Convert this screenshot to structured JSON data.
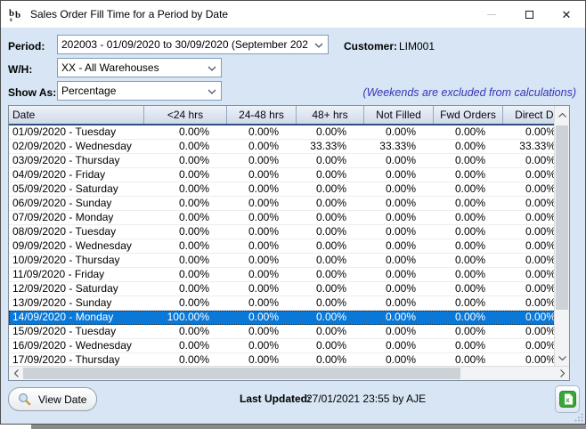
{
  "window": {
    "title": "Sales Order Fill Time for a Period by Date",
    "close_glyph": "✕"
  },
  "form": {
    "period_label": "Period:",
    "period_value": "202003 - 01/09/2020 to 30/09/2020 (September 202",
    "customer_label": "Customer:",
    "customer_value": "LIM001",
    "wh_label": "W/H:",
    "wh_value": "XX - All Warehouses",
    "show_as_label": "Show As:",
    "show_as_value": "Percentage",
    "note": "(Weekends are excluded from calculations)"
  },
  "table": {
    "columns": [
      "Date",
      "<24 hrs",
      "24-48 hrs",
      "48+ hrs",
      "Not Filled",
      "Fwd Orders",
      "Direct Del"
    ],
    "selected_index": 13,
    "rows": [
      {
        "date": "01/09/2020 - Tuesday",
        "values": [
          "0.00%",
          "0.00%",
          "0.00%",
          "0.00%",
          "0.00%",
          "0.00%"
        ]
      },
      {
        "date": "02/09/2020 - Wednesday",
        "values": [
          "0.00%",
          "0.00%",
          "33.33%",
          "33.33%",
          "0.00%",
          "33.33%"
        ]
      },
      {
        "date": "03/09/2020 - Thursday",
        "values": [
          "0.00%",
          "0.00%",
          "0.00%",
          "0.00%",
          "0.00%",
          "0.00%"
        ]
      },
      {
        "date": "04/09/2020 - Friday",
        "values": [
          "0.00%",
          "0.00%",
          "0.00%",
          "0.00%",
          "0.00%",
          "0.00%"
        ]
      },
      {
        "date": "05/09/2020 - Saturday",
        "values": [
          "0.00%",
          "0.00%",
          "0.00%",
          "0.00%",
          "0.00%",
          "0.00%"
        ]
      },
      {
        "date": "06/09/2020 - Sunday",
        "values": [
          "0.00%",
          "0.00%",
          "0.00%",
          "0.00%",
          "0.00%",
          "0.00%"
        ]
      },
      {
        "date": "07/09/2020 - Monday",
        "values": [
          "0.00%",
          "0.00%",
          "0.00%",
          "0.00%",
          "0.00%",
          "0.00%"
        ]
      },
      {
        "date": "08/09/2020 - Tuesday",
        "values": [
          "0.00%",
          "0.00%",
          "0.00%",
          "0.00%",
          "0.00%",
          "0.00%"
        ]
      },
      {
        "date": "09/09/2020 - Wednesday",
        "values": [
          "0.00%",
          "0.00%",
          "0.00%",
          "0.00%",
          "0.00%",
          "0.00%"
        ]
      },
      {
        "date": "10/09/2020 - Thursday",
        "values": [
          "0.00%",
          "0.00%",
          "0.00%",
          "0.00%",
          "0.00%",
          "0.00%"
        ]
      },
      {
        "date": "11/09/2020 - Friday",
        "values": [
          "0.00%",
          "0.00%",
          "0.00%",
          "0.00%",
          "0.00%",
          "0.00%"
        ]
      },
      {
        "date": "12/09/2020 - Saturday",
        "values": [
          "0.00%",
          "0.00%",
          "0.00%",
          "0.00%",
          "0.00%",
          "0.00%"
        ]
      },
      {
        "date": "13/09/2020 - Sunday",
        "values": [
          "0.00%",
          "0.00%",
          "0.00%",
          "0.00%",
          "0.00%",
          "0.00%"
        ]
      },
      {
        "date": "14/09/2020 - Monday",
        "values": [
          "100.00%",
          "0.00%",
          "0.00%",
          "0.00%",
          "0.00%",
          "0.00%"
        ]
      },
      {
        "date": "15/09/2020 - Tuesday",
        "values": [
          "0.00%",
          "0.00%",
          "0.00%",
          "0.00%",
          "0.00%",
          "0.00%"
        ]
      },
      {
        "date": "16/09/2020 - Wednesday",
        "values": [
          "0.00%",
          "0.00%",
          "0.00%",
          "0.00%",
          "0.00%",
          "0.00%"
        ]
      },
      {
        "date": "17/09/2020 - Thursday",
        "values": [
          "0.00%",
          "0.00%",
          "0.00%",
          "0.00%",
          "0.00%",
          "0.00%"
        ]
      }
    ]
  },
  "footer": {
    "view_date_label": "View Date",
    "last_updated_label": "Last Updated:",
    "last_updated_value": "27/01/2021 23:55 by AJE"
  },
  "colors": {
    "selection": "#0a78d7",
    "note_text": "#3434b4",
    "window_bg": "#d7e5f4"
  }
}
